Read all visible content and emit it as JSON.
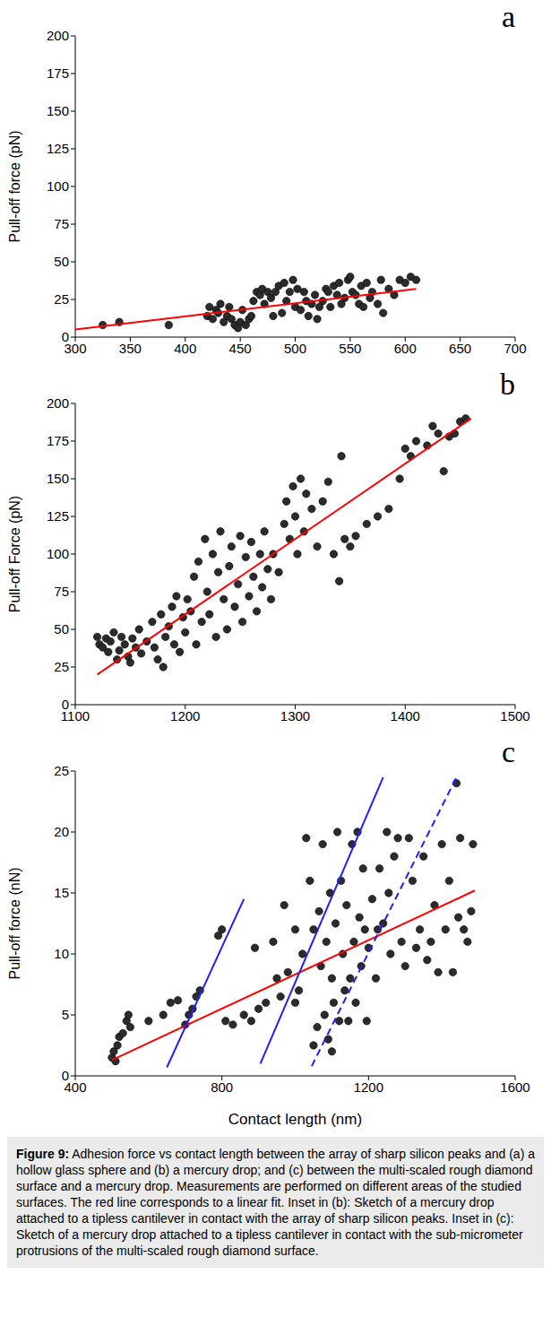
{
  "chart_data": [
    {
      "type": "scatter",
      "panel": "a",
      "ylabel": "Pull-off force (pN)",
      "xlim": [
        300,
        700
      ],
      "xticks": [
        300,
        350,
        400,
        450,
        500,
        550,
        600,
        650,
        700
      ],
      "ylim": [
        0,
        200
      ],
      "yticks": [
        0,
        25,
        50,
        75,
        100,
        125,
        150,
        175,
        200
      ],
      "series": [
        {
          "type": "scatter",
          "color": "#2b2b2b",
          "marker": "circle",
          "x": [
            325,
            340,
            385,
            420,
            422,
            425,
            428,
            430,
            432,
            435,
            438,
            440,
            442,
            445,
            448,
            450,
            452,
            455,
            458,
            460,
            462,
            465,
            468,
            470,
            472,
            475,
            478,
            480,
            482,
            485,
            488,
            490,
            492,
            495,
            498,
            500,
            502,
            505,
            508,
            510,
            512,
            515,
            518,
            520,
            522,
            525,
            528,
            530,
            532,
            535,
            538,
            540,
            542,
            545,
            548,
            550,
            552,
            555,
            558,
            560,
            562,
            565,
            568,
            570,
            575,
            578,
            580,
            585,
            590,
            595,
            600,
            605,
            610
          ],
          "values": [
            8,
            10,
            8,
            14,
            20,
            12,
            18,
            16,
            22,
            10,
            14,
            20,
            12,
            8,
            6,
            10,
            18,
            8,
            12,
            14,
            24,
            30,
            28,
            32,
            22,
            30,
            26,
            14,
            30,
            34,
            16,
            36,
            24,
            30,
            38,
            20,
            32,
            18,
            30,
            24,
            14,
            22,
            28,
            12,
            20,
            24,
            32,
            30,
            20,
            34,
            28,
            36,
            22,
            26,
            38,
            40,
            30,
            28,
            22,
            34,
            20,
            36,
            26,
            30,
            22,
            38,
            16,
            32,
            28,
            38,
            36,
            40,
            38
          ]
        },
        {
          "type": "line",
          "color": "#ff0000",
          "line_style": "solid",
          "x": [
            300,
            610
          ],
          "values": [
            5,
            32
          ]
        }
      ]
    },
    {
      "type": "scatter",
      "panel": "b",
      "ylabel": "Pull-off Force  (pN)",
      "xlim": [
        1100,
        1500
      ],
      "xticks": [
        1100,
        1200,
        1300,
        1400,
        1500
      ],
      "ylim": [
        0,
        200
      ],
      "yticks": [
        0,
        25,
        50,
        75,
        100,
        125,
        150,
        175,
        200
      ],
      "series": [
        {
          "type": "scatter",
          "color": "#2b2b2b",
          "marker": "circle",
          "x": [
            1120,
            1122,
            1125,
            1128,
            1130,
            1132,
            1135,
            1138,
            1140,
            1142,
            1145,
            1148,
            1150,
            1152,
            1155,
            1158,
            1160,
            1165,
            1170,
            1172,
            1175,
            1178,
            1180,
            1182,
            1185,
            1188,
            1190,
            1192,
            1195,
            1198,
            1200,
            1202,
            1205,
            1208,
            1210,
            1212,
            1215,
            1218,
            1220,
            1222,
            1225,
            1228,
            1230,
            1232,
            1235,
            1238,
            1240,
            1242,
            1245,
            1248,
            1250,
            1252,
            1255,
            1258,
            1260,
            1262,
            1265,
            1268,
            1270,
            1272,
            1275,
            1278,
            1280,
            1285,
            1290,
            1292,
            1295,
            1298,
            1300,
            1302,
            1305,
            1308,
            1310,
            1315,
            1320,
            1325,
            1330,
            1335,
            1340,
            1342,
            1345,
            1350,
            1355,
            1365,
            1375,
            1385,
            1395,
            1400,
            1405,
            1410,
            1420,
            1425,
            1430,
            1435,
            1440,
            1445,
            1450,
            1455
          ],
          "values": [
            45,
            40,
            38,
            44,
            35,
            42,
            48,
            30,
            36,
            45,
            40,
            32,
            28,
            44,
            38,
            50,
            34,
            42,
            55,
            38,
            30,
            60,
            25,
            45,
            52,
            65,
            40,
            72,
            35,
            58,
            48,
            70,
            62,
            85,
            40,
            95,
            55,
            110,
            75,
            60,
            100,
            45,
            88,
            115,
            70,
            50,
            92,
            105,
            65,
            80,
            112,
            55,
            98,
            72,
            108,
            85,
            62,
            100,
            78,
            115,
            90,
            70,
            100,
            88,
            120,
            135,
            110,
            145,
            125,
            100,
            150,
            115,
            140,
            130,
            105,
            135,
            148,
            100,
            82,
            165,
            110,
            105,
            112,
            120,
            125,
            130,
            150,
            170,
            165,
            175,
            172,
            185,
            180,
            155,
            178,
            180,
            188,
            190
          ]
        },
        {
          "type": "line",
          "color": "#ff0000",
          "line_style": "solid",
          "x": [
            1120,
            1460
          ],
          "values": [
            20,
            190
          ]
        }
      ]
    },
    {
      "type": "scatter",
      "panel": "c",
      "xlabel": "Contact length (nm)",
      "ylabel": "Pull-off force (nN)",
      "xlim": [
        400,
        1600
      ],
      "xticks": [
        400,
        800,
        1200,
        1600
      ],
      "ylim": [
        0,
        25
      ],
      "yticks": [
        0,
        5,
        10,
        15,
        20,
        25
      ],
      "series": [
        {
          "type": "scatter",
          "color": "#2b2b2b",
          "marker": "circle",
          "x": [
            500,
            505,
            510,
            515,
            520,
            530,
            540,
            545,
            550,
            600,
            640,
            660,
            680,
            700,
            710,
            720,
            730,
            740,
            790,
            800,
            810,
            830,
            860,
            880,
            890,
            900,
            920,
            940,
            950,
            960,
            970,
            980,
            1000,
            1000,
            1010,
            1020,
            1030,
            1040,
            1050,
            1050,
            1060,
            1065,
            1070,
            1075,
            1080,
            1085,
            1090,
            1095,
            1100,
            1100,
            1105,
            1110,
            1115,
            1120,
            1125,
            1130,
            1135,
            1140,
            1145,
            1150,
            1155,
            1160,
            1165,
            1170,
            1175,
            1180,
            1185,
            1190,
            1195,
            1200,
            1210,
            1220,
            1225,
            1230,
            1240,
            1250,
            1255,
            1260,
            1270,
            1280,
            1290,
            1300,
            1310,
            1320,
            1330,
            1340,
            1350,
            1360,
            1370,
            1380,
            1390,
            1400,
            1410,
            1420,
            1430,
            1440,
            1445,
            1450,
            1460,
            1470,
            1480,
            1485
          ],
          "values": [
            1.5,
            2,
            1.2,
            2.5,
            3.2,
            3.5,
            4.5,
            5,
            4,
            4.5,
            5,
            6,
            6.2,
            4.2,
            5,
            5.5,
            6.5,
            7,
            11.5,
            12,
            4.5,
            4.2,
            5,
            4.5,
            10.5,
            5.5,
            6,
            11,
            8,
            6.5,
            14,
            8.5,
            12,
            6,
            7,
            10,
            19.5,
            16,
            12,
            2.5,
            4,
            13.5,
            9,
            19,
            5,
            11,
            3,
            15,
            8,
            2,
            6,
            12.5,
            20,
            4.5,
            16,
            10,
            7,
            14,
            4.5,
            8,
            19,
            11,
            6,
            20,
            13,
            9,
            17,
            12,
            4.5,
            10.5,
            14.5,
            8,
            12,
            17,
            12.5,
            20,
            15,
            10,
            18,
            19.5,
            11,
            9,
            19.5,
            16,
            10.5,
            12,
            18,
            9.5,
            11,
            14,
            8.5,
            19,
            12,
            16,
            8.5,
            24,
            13,
            19.5,
            12,
            11,
            13.5,
            19
          ]
        },
        {
          "type": "line",
          "color": "#ff0000",
          "line_style": "solid",
          "x": [
            500,
            1490
          ],
          "values": [
            1.3,
            15.2
          ]
        },
        {
          "type": "line",
          "color": "#1f1fff",
          "line_style": "solid",
          "x": [
            650,
            860
          ],
          "values": [
            0.7,
            14.5
          ]
        },
        {
          "type": "line",
          "color": "#1f1fff",
          "line_style": "solid",
          "x": [
            905,
            1240
          ],
          "values": [
            1,
            24.5
          ]
        },
        {
          "type": "line",
          "color": "#1f1fff",
          "line_style": "dashed",
          "x": [
            1045,
            1440
          ],
          "values": [
            0.8,
            24.5
          ]
        }
      ]
    }
  ],
  "caption": {
    "label": "Figure 9:",
    "text": "Adhesion force vs contact length between the array of sharp silicon peaks and (a) a hollow glass sphere and (b) a mercury drop; and (c) between the multi-scaled rough diamond surface and a mercury drop. Measurements are performed on different areas of the studied surfaces. The red line corresponds to a linear fit. Inset in (b): Sketch of a mercury drop attached to a tipless cantilever in contact with the array of sharp silicon peaks. Inset in (c): Sketch of a mercury drop attached to a tipless cantilever in contact with the sub-micrometer protrusions of the multi-scaled rough diamond surface."
  }
}
